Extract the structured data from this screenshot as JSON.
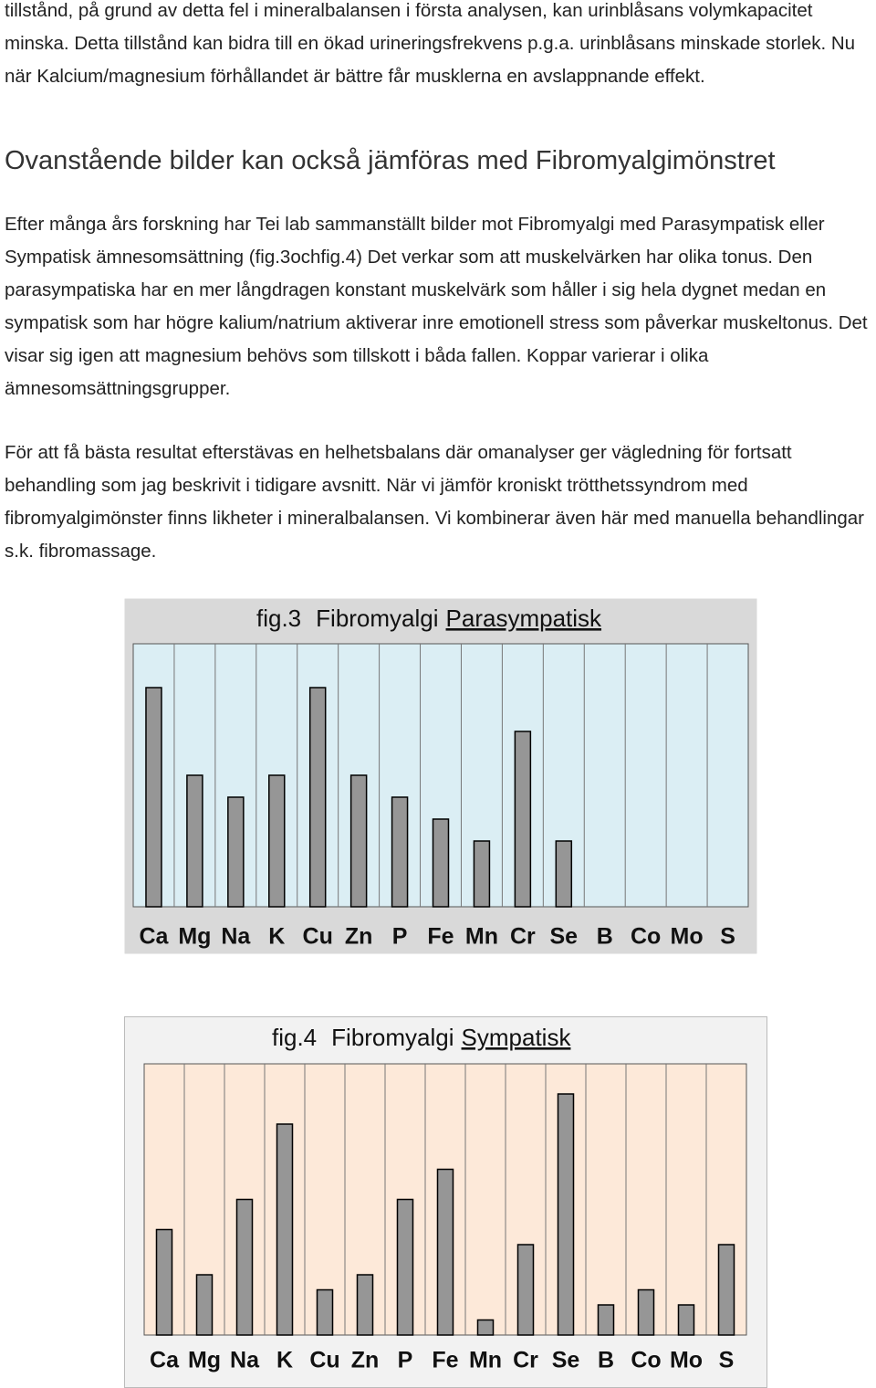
{
  "paragraphs": [
    "tillstånd, på grund av detta fel i mineralbalansen i första analysen, kan urinblåsans volymkapacitet minska. Detta tillstånd kan bidra till en ökad urineringsfrekvens p.g.a. urinblåsans minskade storlek. Nu när Kalcium/magnesium förhållandet är bättre får musklerna en avslappnande effekt.",
    "Efter många års forskning har Tei lab sammanställt bilder mot Fibromyalgi med Parasympatisk eller Sympatisk ämnesomsättning (fig.3ochfig.4) Det verkar som att muskelvärken har olika tonus. Den parasympatiska har en mer långdragen konstant muskelvärk som håller i sig hela dygnet medan en sympatisk som har högre kalium/natrium aktiverar inre emotionell stress som påverkar muskeltonus. Det visar sig igen att magnesium behövs som tillskott i båda fallen. Koppar varierar i olika ämnesomsättningsgrupper.",
    "För att få bästa resultat efterstävas en helhetsbalans där omanalyser ger vägledning för fortsatt behandling som jag beskrivit i tidigare avsnitt. När vi jämför kroniskt trötthetssyndrom med fibromyalgimönster finns likheter i mineralbalansen. Vi kombinerar även här med manuella behandlingar s.k. fibromassage."
  ],
  "heading": "Ovanstående bilder kan också jämföras med Fibromyalgimönstret",
  "chart_data": [
    {
      "type": "bar",
      "figure_label": "fig.3",
      "title": "Fibromyalgi",
      "title_underlined": "Parasympatisk",
      "categories": [
        "Ca",
        "Mg",
        "Na",
        "K",
        "Cu",
        "Zn",
        "P",
        "Fe",
        "Mn",
        "Cr",
        "Se",
        "B",
        "Co",
        "Mo",
        "S"
      ],
      "values": [
        10,
        6,
        5,
        6,
        10,
        6,
        5,
        4,
        3,
        8,
        3,
        0,
        0,
        0,
        0
      ],
      "ylim": [
        0,
        12
      ],
      "color": "#969696",
      "plot_color": "#dbeef4"
    },
    {
      "type": "bar",
      "figure_label": "fig.4",
      "title": "Fibromyalgi",
      "title_underlined": "Sympatisk",
      "categories": [
        "Ca",
        "Mg",
        "Na",
        "K",
        "Cu",
        "Zn",
        "P",
        "Fe",
        "Mn",
        "Cr",
        "Se",
        "B",
        "Co",
        "Mo",
        "S"
      ],
      "values": [
        7,
        4,
        9,
        14,
        3,
        4,
        9,
        11,
        1,
        6,
        16,
        2,
        3,
        2,
        6
      ],
      "ylim": [
        0,
        18
      ],
      "color": "#969696",
      "plot_color": "#fde9d9"
    }
  ]
}
